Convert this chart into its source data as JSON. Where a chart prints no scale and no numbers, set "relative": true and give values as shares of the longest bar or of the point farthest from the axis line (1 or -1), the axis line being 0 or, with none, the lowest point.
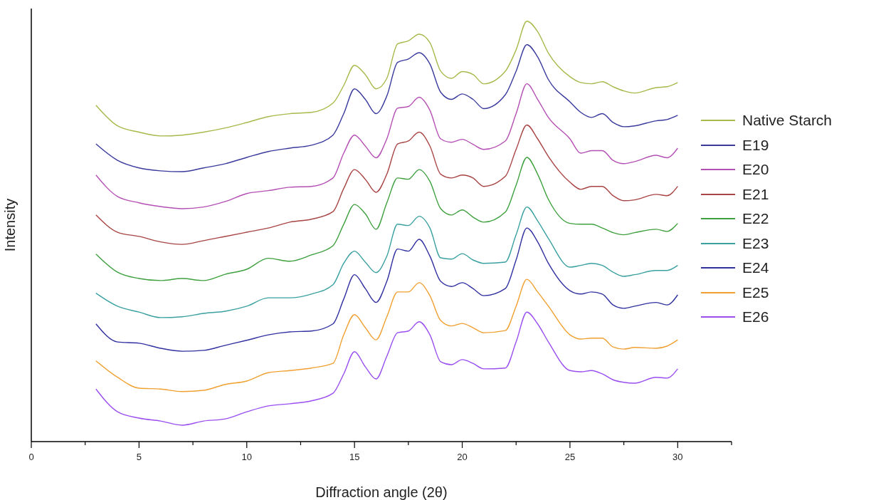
{
  "chart_data": {
    "type": "line",
    "relative": true,
    "xlabel": "Diffraction angle (2θ)",
    "ylabel": "Intensity",
    "xlim": [
      0,
      32.5
    ],
    "xticks": [
      0,
      {
        "value": 2.5,
        "label": null
      },
      5,
      {
        "value": 7.5,
        "label": null
      },
      10,
      {
        "value": 12.5,
        "label": null
      },
      15,
      {
        "value": 17.5,
        "label": null
      },
      20,
      {
        "value": 22.5,
        "label": null
      },
      25,
      {
        "value": 27.5,
        "label": null
      },
      30,
      {
        "value": 32.5,
        "label": null
      }
    ],
    "tick_labels": "x",
    "grid": false,
    "legend": "right",
    "marker": "none",
    "line_style": "solid",
    "x": [
      3,
      4,
      5,
      6,
      7,
      8,
      9,
      10,
      11,
      12,
      13,
      14,
      14.5,
      15,
      15.5,
      16,
      16.5,
      17,
      17.5,
      18,
      18.5,
      19,
      19.5,
      20,
      20.5,
      21,
      22,
      22.5,
      23,
      23.5,
      24,
      25,
      25.5,
      26,
      26.5,
      27,
      27.5,
      28,
      29,
      29.5,
      30
    ],
    "series": [
      {
        "name": "Native Starch",
        "color": "#a9b84a",
        "values": [
          0.8,
          0.751,
          0.736,
          0.727,
          0.729,
          0.736,
          0.746,
          0.759,
          0.773,
          0.78,
          0.783,
          0.805,
          0.847,
          0.895,
          0.873,
          0.839,
          0.864,
          0.946,
          0.953,
          0.969,
          0.949,
          0.881,
          0.864,
          0.88,
          0.873,
          0.851,
          0.881,
          0.932,
          1,
          0.975,
          0.924,
          0.868,
          0.854,
          0.851,
          0.856,
          0.844,
          0.834,
          0.829,
          0.842,
          0.844,
          0.854
        ]
      },
      {
        "name": "E19",
        "color": "#3a3a9e",
        "values": [
          0.708,
          0.669,
          0.651,
          0.644,
          0.642,
          0.651,
          0.661,
          0.676,
          0.69,
          0.698,
          0.705,
          0.729,
          0.78,
          0.839,
          0.814,
          0.78,
          0.822,
          0.902,
          0.91,
          0.925,
          0.898,
          0.831,
          0.814,
          0.827,
          0.814,
          0.792,
          0.825,
          0.881,
          0.944,
          0.915,
          0.861,
          0.808,
          0.783,
          0.771,
          0.78,
          0.759,
          0.749,
          0.751,
          0.763,
          0.766,
          0.776
        ]
      },
      {
        "name": "E20",
        "color": "#b44fb4",
        "values": [
          0.634,
          0.583,
          0.568,
          0.559,
          0.554,
          0.558,
          0.571,
          0.59,
          0.597,
          0.605,
          0.607,
          0.627,
          0.686,
          0.729,
          0.703,
          0.675,
          0.72,
          0.793,
          0.797,
          0.819,
          0.788,
          0.72,
          0.712,
          0.719,
          0.707,
          0.695,
          0.715,
          0.78,
          0.851,
          0.814,
          0.771,
          0.72,
          0.686,
          0.692,
          0.692,
          0.669,
          0.661,
          0.666,
          0.681,
          0.675,
          0.698
        ]
      },
      {
        "name": "E21",
        "color": "#a84444",
        "values": [
          0.539,
          0.498,
          0.488,
          0.475,
          0.469,
          0.478,
          0.488,
          0.498,
          0.508,
          0.522,
          0.529,
          0.547,
          0.602,
          0.647,
          0.624,
          0.593,
          0.636,
          0.708,
          0.715,
          0.736,
          0.703,
          0.636,
          0.627,
          0.634,
          0.627,
          0.607,
          0.631,
          0.695,
          0.753,
          0.72,
          0.678,
          0.617,
          0.6,
          0.607,
          0.607,
          0.585,
          0.573,
          0.575,
          0.588,
          0.585,
          0.607
        ]
      },
      {
        "name": "E22",
        "color": "#3ea03e",
        "values": [
          0.446,
          0.403,
          0.388,
          0.383,
          0.388,
          0.383,
          0.398,
          0.41,
          0.436,
          0.429,
          0.444,
          0.466,
          0.517,
          0.564,
          0.542,
          0.505,
          0.568,
          0.627,
          0.624,
          0.647,
          0.619,
          0.554,
          0.539,
          0.551,
          0.534,
          0.522,
          0.546,
          0.61,
          0.676,
          0.636,
          0.576,
          0.519,
          0.517,
          0.517,
          0.508,
          0.497,
          0.492,
          0.497,
          0.505,
          0.5,
          0.519
        ]
      },
      {
        "name": "E23",
        "color": "#3aa0a0",
        "values": [
          0.353,
          0.322,
          0.308,
          0.295,
          0.297,
          0.305,
          0.31,
          0.322,
          0.342,
          0.342,
          0.351,
          0.373,
          0.424,
          0.453,
          0.427,
          0.402,
          0.441,
          0.517,
          0.514,
          0.536,
          0.508,
          0.437,
          0.434,
          0.447,
          0.432,
          0.424,
          0.427,
          0.492,
          0.558,
          0.525,
          0.483,
          0.415,
          0.419,
          0.424,
          0.419,
          0.403,
          0.393,
          0.397,
          0.407,
          0.407,
          0.419
        ]
      },
      {
        "name": "E24",
        "color": "#3030a0",
        "values": [
          0.28,
          0.237,
          0.234,
          0.222,
          0.215,
          0.217,
          0.229,
          0.241,
          0.254,
          0.261,
          0.263,
          0.28,
          0.339,
          0.397,
          0.364,
          0.331,
          0.381,
          0.458,
          0.453,
          0.481,
          0.441,
          0.381,
          0.369,
          0.378,
          0.364,
          0.347,
          0.364,
          0.432,
          0.508,
          0.475,
          0.424,
          0.359,
          0.351,
          0.356,
          0.351,
          0.325,
          0.317,
          0.322,
          0.331,
          0.325,
          0.349
        ]
      },
      {
        "name": "E25",
        "color": "#f0a030",
        "values": [
          0.192,
          0.153,
          0.127,
          0.125,
          0.119,
          0.122,
          0.136,
          0.144,
          0.164,
          0.169,
          0.175,
          0.186,
          0.254,
          0.302,
          0.271,
          0.242,
          0.297,
          0.356,
          0.356,
          0.378,
          0.347,
          0.288,
          0.275,
          0.281,
          0.271,
          0.259,
          0.264,
          0.322,
          0.386,
          0.356,
          0.322,
          0.254,
          0.244,
          0.246,
          0.246,
          0.225,
          0.22,
          0.224,
          0.222,
          0.227,
          0.242
        ]
      },
      {
        "name": "E26",
        "color": "#9a4ef0",
        "values": [
          0.125,
          0.071,
          0.056,
          0.049,
          0.039,
          0.049,
          0.054,
          0.071,
          0.085,
          0.09,
          0.097,
          0.115,
          0.161,
          0.214,
          0.178,
          0.149,
          0.203,
          0.259,
          0.263,
          0.285,
          0.254,
          0.19,
          0.183,
          0.195,
          0.186,
          0.173,
          0.175,
          0.237,
          0.308,
          0.28,
          0.237,
          0.169,
          0.166,
          0.169,
          0.161,
          0.147,
          0.141,
          0.139,
          0.153,
          0.151,
          0.173
        ]
      }
    ]
  }
}
